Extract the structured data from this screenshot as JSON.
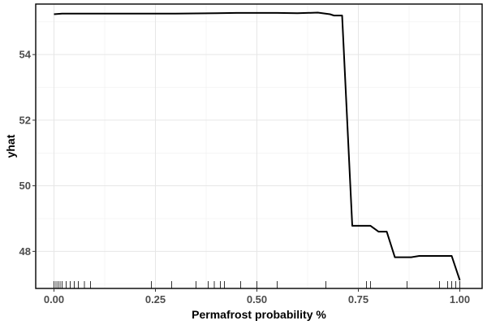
{
  "chart_data": {
    "type": "line",
    "title": "",
    "xlabel": "Permafrost probability %",
    "ylabel": "yhat",
    "xlim": [
      -0.045,
      1.055
    ],
    "ylim": [
      46.87,
      55.54
    ],
    "x_ticks": [
      0,
      0.25,
      0.5,
      0.75,
      1
    ],
    "x_tick_labels": [
      "0.00",
      "0.25",
      "0.50",
      "0.75",
      "1.00"
    ],
    "y_ticks": [
      48,
      50,
      52,
      54
    ],
    "y_tick_labels": [
      "48",
      "50",
      "52",
      "54"
    ],
    "grid": true,
    "legend": "none",
    "line_color": "#000000",
    "rug_color": "#000000",
    "series": [
      {
        "x": [
          0.0,
          0.02,
          0.1,
          0.2,
          0.3,
          0.4,
          0.45,
          0.5,
          0.55,
          0.6,
          0.65,
          0.68,
          0.69,
          0.71,
          0.735,
          0.78,
          0.8,
          0.82,
          0.84,
          0.88,
          0.9,
          0.96,
          0.98,
          1.0
        ],
        "y": [
          55.23,
          55.25,
          55.25,
          55.25,
          55.25,
          55.26,
          55.27,
          55.27,
          55.27,
          55.26,
          55.28,
          55.23,
          55.19,
          55.19,
          48.78,
          48.78,
          48.6,
          48.6,
          47.82,
          47.82,
          47.86,
          47.86,
          47.86,
          47.12
        ]
      }
    ],
    "rug_x": [
      0.0,
      0.005,
      0.01,
      0.015,
      0.02,
      0.03,
      0.04,
      0.05,
      0.06,
      0.075,
      0.09,
      0.24,
      0.29,
      0.35,
      0.38,
      0.395,
      0.41,
      0.42,
      0.46,
      0.5,
      0.55,
      0.67,
      0.77,
      0.78,
      0.87,
      0.95,
      0.97,
      0.98,
      0.99,
      1.0
    ]
  }
}
